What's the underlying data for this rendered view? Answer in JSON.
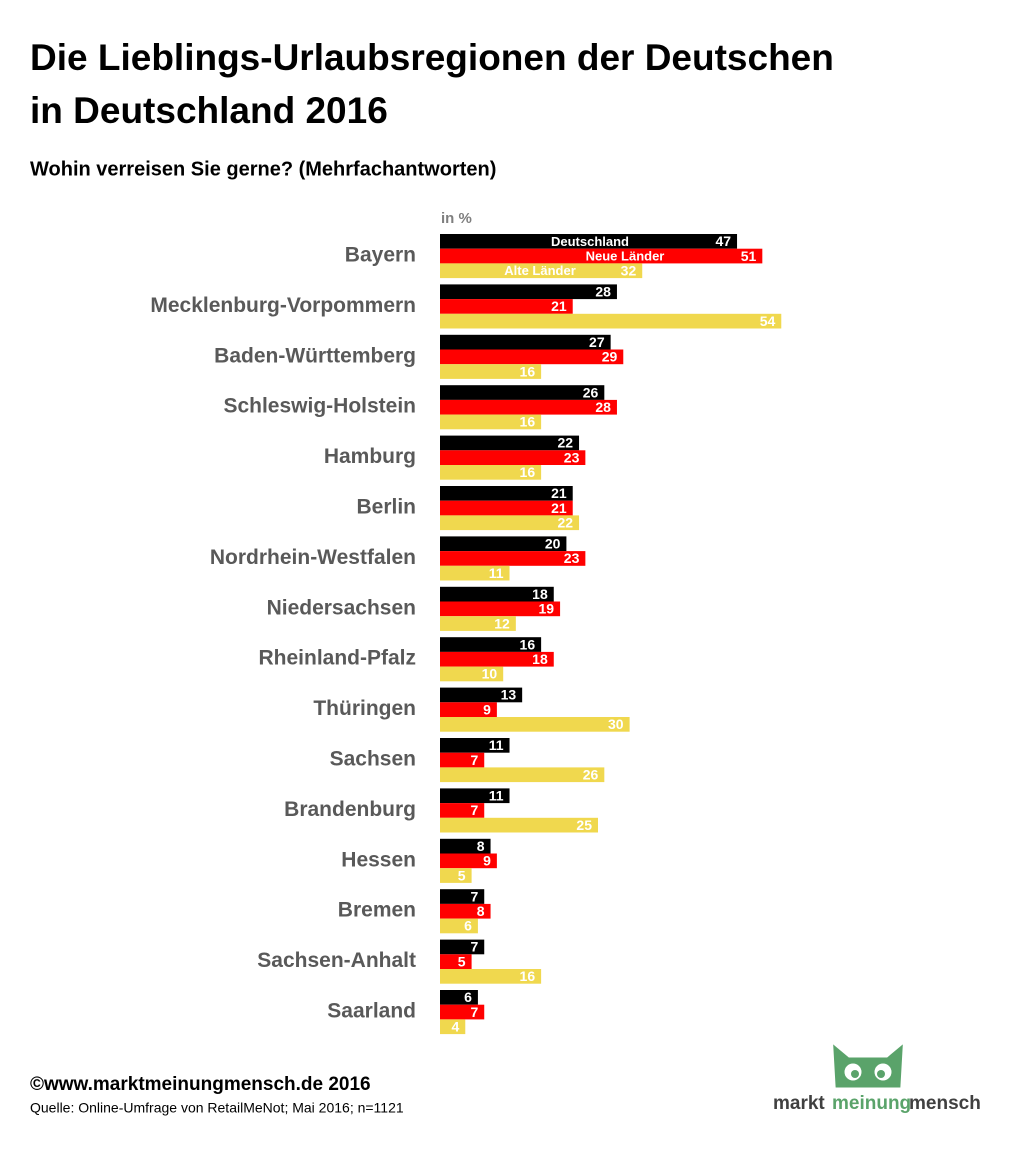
{
  "chart_data": {
    "type": "bar",
    "orientation": "horizontal",
    "title": [
      "Die Lieblings-Urlaubsregionen der Deutschen",
      "in Deutschland 2016"
    ],
    "subtitle": "Wohin verreisen Sie gerne? (Mehrfachantworten)",
    "unit_label": "in %",
    "categories": [
      "Bayern",
      "Mecklenburg-Vorpommern",
      "Baden-Württemberg",
      "Schleswig-Holstein",
      "Hamburg",
      "Berlin",
      "Nordrhein-Westfalen",
      "Niedersachsen",
      "Rheinland-Pfalz",
      "Thüringen",
      "Sachsen",
      "Brandenburg",
      "Hessen",
      "Bremen",
      "Sachsen-Anhalt",
      "Saarland"
    ],
    "series": [
      {
        "name": "Deutschland",
        "color": "#000000",
        "values": [
          47,
          28,
          27,
          26,
          22,
          21,
          20,
          18,
          16,
          13,
          11,
          11,
          8,
          7,
          7,
          6
        ]
      },
      {
        "name": "Neue Länder",
        "color": "#ff0000",
        "values": [
          51,
          21,
          29,
          28,
          23,
          21,
          23,
          19,
          18,
          9,
          7,
          7,
          9,
          8,
          5,
          7
        ]
      },
      {
        "name": "Alte Länder",
        "color": "#f0d84e",
        "values": [
          32,
          54,
          16,
          16,
          16,
          22,
          11,
          12,
          10,
          30,
          26,
          25,
          5,
          6,
          16,
          4
        ]
      }
    ],
    "footer": {
      "copyright": "©www.marktmeinungmensch.de 2016",
      "source": "Quelle: Online-Umfrage von RetailMeNot; Mai 2016; n=1121"
    },
    "logo": [
      "markt",
      "meinung",
      "mensch"
    ]
  }
}
